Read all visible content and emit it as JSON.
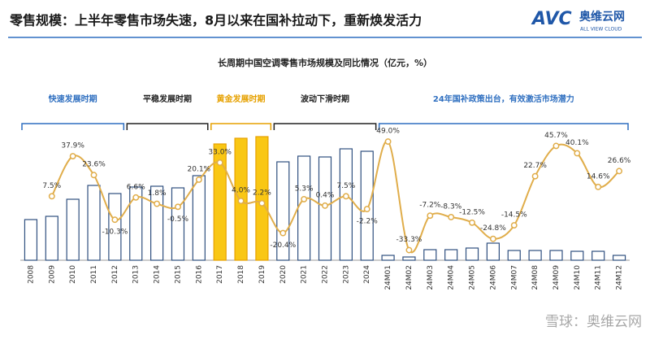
{
  "header": {
    "title": "零售规模：上半年零售市场失速，8月以来在国补拉动下，重新焕发活力"
  },
  "logo": {
    "brand": "AVC",
    "name": "奥维云网",
    "tagline": "ALL VIEW CLOUD"
  },
  "watermark": "雪球：奥维云网",
  "chart_data": {
    "type": "bar_line",
    "title": "长周期中国空调零售市场规模及同比情况（亿元，%）",
    "categories": [
      "2008",
      "2009",
      "2010",
      "2011",
      "2012",
      "2013",
      "2014",
      "2015",
      "2016",
      "2017",
      "2018",
      "2019",
      "2020",
      "2021",
      "2022",
      "2023",
      "2024",
      "24M01",
      "24M02",
      "24M03",
      "24M04",
      "24M05",
      "24M06",
      "24M07",
      "24M08",
      "24M09",
      "24M10",
      "24M11",
      "24M12"
    ],
    "periods": [
      {
        "label": "快速发展时期",
        "color": "#2f6fc0"
      },
      {
        "label": "平稳发展时期",
        "color": "#222222"
      },
      {
        "label": "黄金发展时期",
        "color": "#e6a100"
      },
      {
        "label": "波动下滑时期",
        "color": "#222222"
      },
      {
        "label": "24年国补政策出台，有效激活市场潜力",
        "color": "#2f6fc0"
      }
    ],
    "ylim": [
      0,
      2520
    ],
    "y2lim": [
      -41,
      70
    ],
    "series": [
      {
        "name": "零售规模",
        "type": "bar",
        "stroke": "#2f4f7f",
        "colors": [
          "#ffffff",
          "#ffffff",
          "#ffffff",
          "#ffffff",
          "#ffffff",
          "#ffffff",
          "#ffffff",
          "#ffffff",
          "#ffffff",
          "#f9c715",
          "#f9c715",
          "#f9c715",
          "#ffffff",
          "#ffffff",
          "#ffffff",
          "#ffffff",
          "#ffffff",
          "#ffffff",
          "#ffffff",
          "#ffffff",
          "#ffffff",
          "#ffffff",
          "#ffffff",
          "#ffffff",
          "#ffffff",
          "#ffffff",
          "#ffffff",
          "#ffffff",
          "#ffffff"
        ],
        "values": [
          700,
          756,
          1050,
          1288,
          1148,
          1260,
          1274,
          1246,
          1456,
          2002,
          2100,
          2128,
          1694,
          1792,
          1778,
          1918,
          1876,
          84,
          56,
          182,
          182,
          210,
          294,
          168,
          168,
          168,
          154,
          154,
          84
        ]
      },
      {
        "name": "同比",
        "type": "line",
        "axis": "y2",
        "color": "#e0ad4a",
        "values": [
          null,
          7.5,
          37.9,
          23.6,
          -10.3,
          6.6,
          1.8,
          -0.5,
          20.1,
          33.0,
          4.0,
          2.2,
          -20.4,
          5.3,
          0.4,
          7.5,
          -2.2,
          49.0,
          -33.3,
          -7.2,
          -8.3,
          -12.5,
          -24.8,
          -14.5,
          22.7,
          45.7,
          40.1,
          14.6,
          26.6
        ],
        "value_labels": [
          null,
          "7.5%",
          "37.9%",
          "23.6%",
          "-10.3%",
          "6.6%",
          "1.8%",
          "-0.5%",
          "20.1%",
          "33.0%",
          "4.0%",
          "2.2%",
          "-20.4%",
          "5.3%",
          "0.4%",
          "7.5%",
          "-2.2%",
          "49.0%",
          "-33.3%",
          "-7.2%",
          "-8.3%",
          "-12.5%",
          "-24.8%",
          "-14.5%",
          "22.7%",
          "45.7%",
          "40.1%",
          "14.6%",
          "26.6%"
        ]
      }
    ]
  }
}
